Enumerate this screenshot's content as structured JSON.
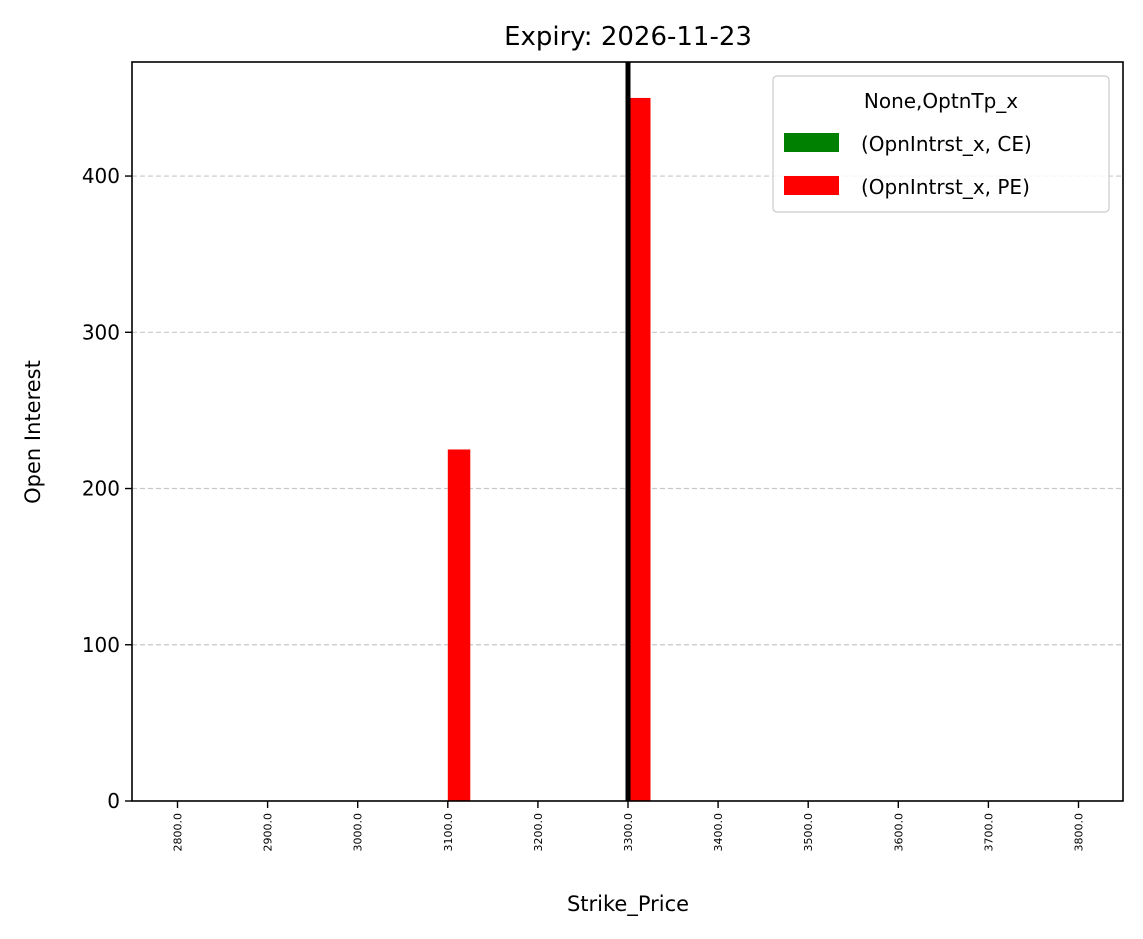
{
  "chart_data": {
    "type": "bar",
    "title": "Expiry: 2026-11-23",
    "xlabel": "Strike_Price",
    "ylabel": "Open Interest",
    "categories": [
      "2800.0",
      "2900.0",
      "3000.0",
      "3100.0",
      "3200.0",
      "3300.0",
      "3400.0",
      "3500.0",
      "3600.0",
      "3700.0",
      "3800.0"
    ],
    "series": [
      {
        "name": "(OpnIntrst_x, CE)",
        "color": "#008000",
        "values": [
          0,
          0,
          0,
          0,
          0,
          0,
          0,
          0,
          0,
          0,
          0
        ]
      },
      {
        "name": "(OpnIntrst_x, PE)",
        "color": "#ff0000",
        "values": [
          0,
          0,
          0,
          225,
          0,
          450,
          0,
          0,
          0,
          0,
          0
        ]
      }
    ],
    "ylim": [
      0,
      473
    ],
    "yticks": [
      0,
      100,
      200,
      300,
      400
    ],
    "grid": "y-dashed",
    "legend": {
      "title": "None,OptnTp_x",
      "placement": "top-right"
    },
    "vline": {
      "x": "3300.0",
      "color": "#000000"
    }
  }
}
